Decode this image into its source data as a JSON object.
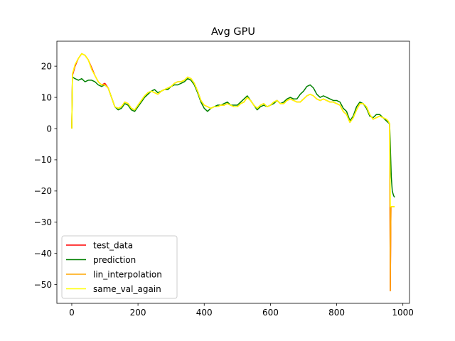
{
  "chart_data": {
    "type": "line",
    "title": "Avg GPU",
    "xlabel": "",
    "ylabel": "",
    "xlim": [
      -45,
      1020
    ],
    "ylim": [
      -56,
      28
    ],
    "xticks": [
      0,
      200,
      400,
      600,
      800,
      1000
    ],
    "yticks": [
      -50,
      -40,
      -30,
      -20,
      -10,
      0,
      10,
      20
    ],
    "grid": false,
    "legend_position": "lower-left",
    "series": [
      {
        "name": "test_data",
        "color": "#ff0000",
        "x": [
          0,
          2,
          10,
          20,
          30,
          40,
          50,
          60,
          70,
          80,
          90,
          100,
          110,
          120,
          130,
          140,
          150,
          160,
          170,
          180,
          190,
          200,
          210,
          220,
          230,
          240,
          250,
          260,
          270,
          280,
          290,
          300,
          310,
          320,
          330,
          340,
          350,
          360,
          370,
          380,
          390,
          400,
          410,
          420,
          430,
          440,
          450,
          460,
          470,
          480,
          490,
          500,
          510,
          520,
          530,
          540,
          550,
          560,
          570,
          580,
          590,
          600,
          610,
          620,
          630,
          640,
          650,
          660,
          670,
          680,
          690,
          700,
          710,
          720,
          730,
          740,
          750,
          760,
          770,
          780,
          790,
          800,
          810,
          820,
          830,
          840,
          850,
          860,
          870,
          880,
          890,
          900,
          910,
          920,
          930,
          940,
          950,
          955,
          960,
          962,
          964,
          970,
          975
        ],
        "values": [
          0,
          17,
          20,
          22.5,
          24,
          23.5,
          22,
          19.5,
          17,
          15,
          14,
          14.5,
          13,
          10,
          7,
          6.5,
          7,
          8.5,
          8,
          6.5,
          6,
          7.5,
          9,
          10.5,
          11.5,
          12,
          11.5,
          11,
          12,
          12.5,
          13,
          13.5,
          14.5,
          15,
          15,
          15.5,
          16.5,
          16,
          14.5,
          12,
          9,
          7.5,
          7,
          6.5,
          7,
          7,
          7.5,
          7.5,
          8,
          7.5,
          7,
          7,
          8,
          8.5,
          10,
          9,
          7.5,
          6.5,
          7.5,
          8,
          7,
          7.5,
          8.5,
          9,
          8,
          8,
          9,
          9.5,
          9,
          8.5,
          8.5,
          9.5,
          10.5,
          11,
          10.5,
          9.5,
          9,
          9.5,
          9,
          8.5,
          8.5,
          8,
          7.5,
          5.5,
          4.5,
          2,
          3.5,
          6,
          8,
          8,
          7,
          4.5,
          3,
          3.5,
          4,
          3.5,
          3,
          2.5,
          1.5,
          -52,
          -25,
          -25,
          -25
        ]
      },
      {
        "name": "prediction",
        "color": "#008000",
        "x": [
          0,
          2,
          10,
          20,
          30,
          40,
          50,
          60,
          70,
          80,
          90,
          100,
          110,
          120,
          130,
          140,
          150,
          160,
          170,
          180,
          190,
          200,
          210,
          220,
          230,
          240,
          250,
          260,
          270,
          280,
          290,
          300,
          310,
          320,
          330,
          340,
          350,
          360,
          370,
          380,
          390,
          400,
          410,
          420,
          430,
          440,
          450,
          460,
          470,
          480,
          490,
          500,
          510,
          520,
          530,
          540,
          550,
          560,
          570,
          580,
          590,
          600,
          610,
          620,
          630,
          640,
          650,
          660,
          670,
          680,
          690,
          700,
          710,
          720,
          730,
          740,
          750,
          760,
          770,
          780,
          790,
          800,
          810,
          820,
          830,
          840,
          850,
          860,
          870,
          880,
          890,
          900,
          910,
          920,
          930,
          940,
          950,
          955,
          960,
          965,
          968,
          972,
          975
        ],
        "values": [
          0,
          16.5,
          16,
          15.5,
          16,
          15,
          15.5,
          15.5,
          15,
          14,
          13.5,
          14,
          13,
          10,
          7,
          6,
          6.5,
          8,
          7.5,
          6,
          5.5,
          7,
          8.5,
          10,
          11,
          12,
          12.5,
          11.5,
          12,
          12.5,
          12.5,
          13.5,
          14,
          14,
          14.5,
          15,
          16,
          15.5,
          14,
          11.5,
          8.5,
          6.5,
          5.5,
          6.5,
          7,
          7.5,
          7.5,
          8,
          8.5,
          7.5,
          7.5,
          7.5,
          8.5,
          9.5,
          10.5,
          9,
          7.5,
          6,
          7,
          7.5,
          7,
          7.5,
          8,
          9,
          8,
          8.5,
          9.5,
          10,
          9.5,
          9.5,
          11,
          12,
          13.5,
          14,
          13,
          11,
          10,
          10.5,
          10,
          9.5,
          9,
          9,
          8.5,
          6.5,
          5.5,
          2.5,
          4,
          7,
          8.5,
          8,
          6.5,
          4,
          3.5,
          4.5,
          4.5,
          3.5,
          2.5,
          2,
          1.5,
          -15.5,
          -20,
          -21.5,
          -22
        ]
      },
      {
        "name": "lin_interpolation",
        "color": "#ffa500",
        "x": [
          0,
          2,
          10,
          20,
          30,
          40,
          50,
          60,
          70,
          80,
          90,
          100,
          110,
          120,
          130,
          140,
          150,
          160,
          170,
          180,
          190,
          200,
          210,
          220,
          230,
          240,
          250,
          260,
          270,
          280,
          290,
          300,
          310,
          320,
          330,
          340,
          350,
          360,
          370,
          380,
          390,
          400,
          410,
          420,
          430,
          440,
          450,
          460,
          470,
          480,
          490,
          500,
          510,
          520,
          530,
          540,
          550,
          560,
          570,
          580,
          590,
          600,
          610,
          620,
          630,
          640,
          650,
          660,
          670,
          680,
          690,
          700,
          710,
          720,
          730,
          740,
          750,
          760,
          770,
          780,
          790,
          800,
          810,
          820,
          830,
          840,
          850,
          860,
          870,
          880,
          890,
          900,
          910,
          920,
          930,
          940,
          950,
          955,
          960,
          962,
          964,
          970,
          975
        ],
        "values": [
          0,
          17.5,
          20.5,
          22.5,
          24,
          23.5,
          22,
          19,
          17,
          15,
          14,
          14,
          13,
          10,
          7,
          6.5,
          7,
          8.5,
          8,
          6.5,
          6,
          7.5,
          9,
          10.5,
          11.5,
          12,
          11.5,
          11,
          12,
          12.5,
          13,
          13.5,
          14.5,
          15,
          15,
          15.5,
          16.5,
          16,
          14.5,
          12,
          9,
          7.5,
          7,
          6.5,
          7,
          7,
          7.5,
          7.5,
          8,
          7.5,
          7,
          7,
          8,
          8.5,
          10,
          9,
          7.5,
          6.5,
          7.5,
          8,
          7,
          7.5,
          8.5,
          9,
          8,
          8,
          9,
          9.5,
          9,
          8.5,
          8.5,
          9.5,
          10.5,
          11,
          10.5,
          9.5,
          9,
          9.5,
          9,
          8.5,
          8.5,
          8,
          7.5,
          5.5,
          4.5,
          2,
          3.5,
          6,
          8,
          8,
          7,
          4.5,
          3,
          3.5,
          4,
          3.5,
          3,
          2.5,
          1.5,
          -52,
          -25,
          -25,
          -25
        ]
      },
      {
        "name": "same_val_again",
        "color": "#ffff00",
        "x": [
          0,
          2,
          10,
          20,
          30,
          40,
          50,
          60,
          70,
          80,
          90,
          100,
          110,
          120,
          130,
          140,
          150,
          160,
          170,
          180,
          190,
          200,
          210,
          220,
          230,
          240,
          250,
          260,
          270,
          280,
          290,
          300,
          310,
          320,
          330,
          340,
          350,
          360,
          370,
          380,
          390,
          400,
          410,
          420,
          430,
          440,
          450,
          460,
          470,
          480,
          490,
          500,
          510,
          520,
          530,
          540,
          550,
          560,
          570,
          580,
          590,
          600,
          610,
          620,
          630,
          640,
          650,
          660,
          670,
          680,
          690,
          700,
          710,
          720,
          730,
          740,
          750,
          760,
          770,
          780,
          790,
          800,
          810,
          820,
          830,
          840,
          850,
          860,
          870,
          880,
          890,
          900,
          910,
          920,
          930,
          940,
          950,
          955,
          960,
          962,
          964,
          970,
          975
        ],
        "values": [
          0,
          17.5,
          20.5,
          22.5,
          24,
          23.5,
          22,
          19,
          17,
          15,
          14,
          14,
          13,
          10,
          7,
          6.5,
          7,
          8.5,
          8,
          6.5,
          6,
          7.5,
          9,
          10.5,
          11.5,
          12,
          11.5,
          11,
          12,
          12.5,
          13,
          13.5,
          14.5,
          15,
          15,
          15.5,
          16.5,
          16,
          14.5,
          12,
          9,
          7.5,
          7,
          6.5,
          7,
          7,
          7.5,
          7.5,
          8,
          7.5,
          7,
          7,
          8,
          8.5,
          10,
          9,
          7.5,
          6.5,
          7.5,
          8,
          7,
          7.5,
          8.5,
          9,
          8,
          8,
          9,
          9.5,
          9,
          8.5,
          8.5,
          9.5,
          10.5,
          11,
          10.5,
          9.5,
          9,
          9.5,
          9,
          8.5,
          8.5,
          8,
          7.5,
          5.5,
          4.5,
          2,
          3.5,
          6,
          8,
          8,
          7,
          4.5,
          3,
          3.5,
          4,
          3.5,
          3,
          2.5,
          1.5,
          -25,
          -25,
          -25,
          -25
        ]
      }
    ]
  }
}
